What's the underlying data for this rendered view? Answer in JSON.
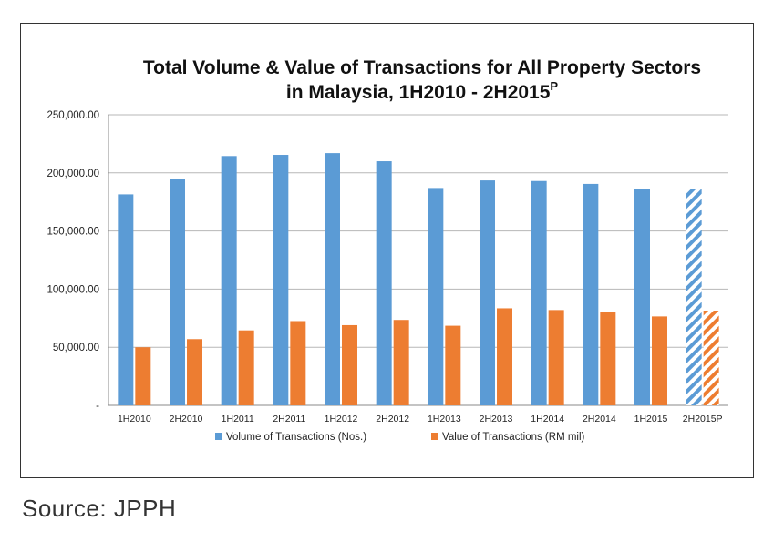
{
  "chart_data": {
    "type": "bar",
    "title": "Total Volume & Value of Transactions for All Property Sectors",
    "title_line2": "in Malaysia, 1H2010 - 2H2015",
    "title_superscript": "P",
    "categories": [
      "1H2010",
      "2H2010",
      "1H2011",
      "2H2011",
      "1H2012",
      "2H2012",
      "1H2013",
      "2H2013",
      "1H2014",
      "2H2014",
      "1H2015",
      "2H2015P"
    ],
    "series": [
      {
        "name": "Volume of Transactions (Nos.)",
        "color": "#5b9bd5",
        "values": [
          181500,
          194500,
          214500,
          215500,
          217000,
          210000,
          187000,
          193500,
          193000,
          190500,
          186500,
          186500
        ]
      },
      {
        "name": "Value of Transactions (RM mil)",
        "color": "#ed7d31",
        "values": [
          50000,
          57000,
          64500,
          72500,
          69000,
          73500,
          68500,
          83500,
          82000,
          80500,
          76500,
          81500
        ]
      }
    ],
    "hatched_categories": [
      "2H2015P"
    ],
    "yticks": [
      0,
      50000,
      100000,
      150000,
      200000,
      250000
    ],
    "ytick_labels": [
      "-",
      "50,000.00",
      "100,000.00",
      "150,000.00",
      "200,000.00",
      "250,000.00"
    ],
    "ylim": [
      0,
      250000
    ],
    "grid": true,
    "legend_position": "bottom"
  },
  "source": "Source: JPPH"
}
